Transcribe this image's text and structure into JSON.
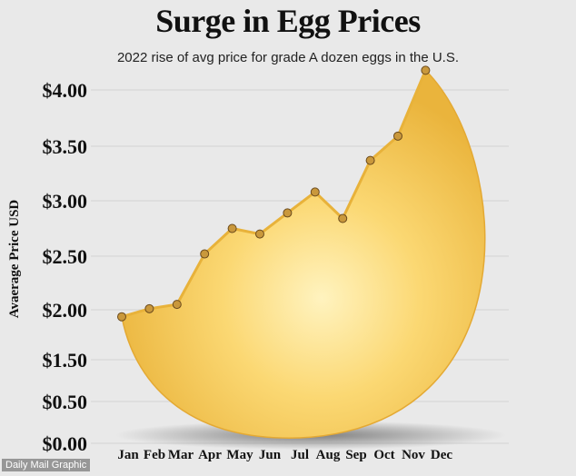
{
  "header": {
    "title": "Surge in Egg Prices",
    "subtitle": "2022 rise of avg price for grade A dozen eggs in the U.S."
  },
  "credit": "Daily Mail Graphic",
  "colors": {
    "background": "#e9e9e9",
    "egg_fill": "#f6cd57",
    "line": "#e8b23a",
    "marker": "#c9983c",
    "gridline": "#d3d3d3"
  },
  "chart_data": {
    "type": "area",
    "title": "Surge in Egg Prices",
    "subtitle": "2022 rise of avg price for grade A dozen eggs in the U.S.",
    "xlabel": "",
    "ylabel": "Avaerage Price USD",
    "categories": [
      "Jan",
      "Feb",
      "Mar",
      "Apr",
      "May",
      "Jun",
      "Jul",
      "Aug",
      "Sep",
      "Oct",
      "Nov",
      "Dec"
    ],
    "values": [
      1.93,
      2.01,
      2.05,
      2.52,
      2.75,
      2.7,
      2.89,
      3.08,
      2.84,
      3.37,
      3.59,
      4.18
    ],
    "yticks": [
      {
        "value": 0.0,
        "label": "$0.00"
      },
      {
        "value": 0.5,
        "label": "$0.50"
      },
      {
        "value": 1.5,
        "label": "$1.50"
      },
      {
        "value": 2.0,
        "label": "$2.00"
      },
      {
        "value": 2.5,
        "label": "$2.50"
      },
      {
        "value": 3.0,
        "label": "$3.00"
      },
      {
        "value": 3.5,
        "label": "$3.50"
      },
      {
        "value": 4.0,
        "label": "$4.00"
      }
    ],
    "grid": true,
    "legend": "none"
  }
}
